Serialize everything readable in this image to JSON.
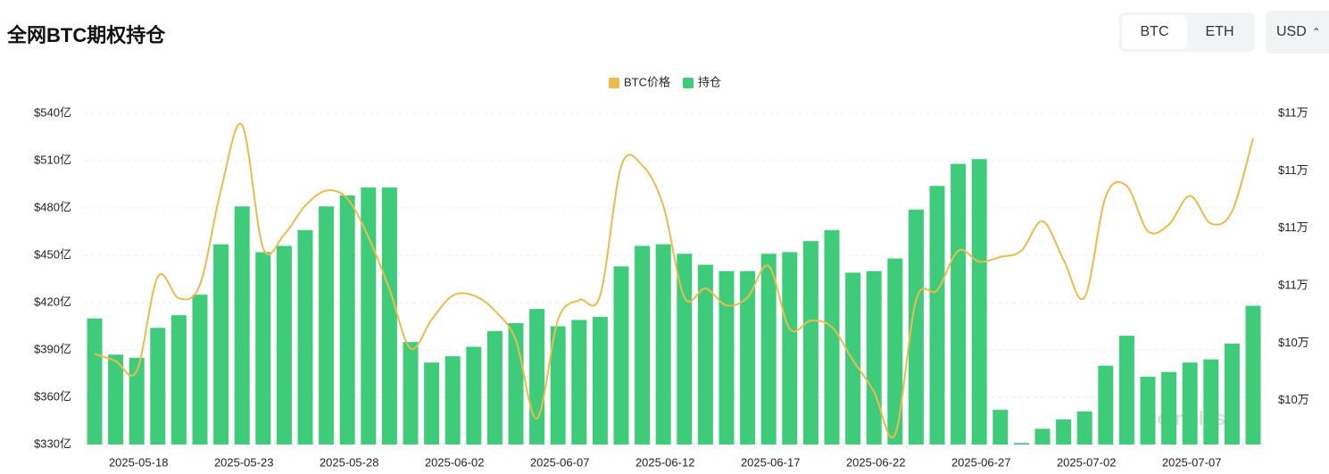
{
  "header": {
    "title": "全网BTC期权持仓",
    "tabs": [
      "BTC",
      "ETH"
    ],
    "currency": "USD"
  },
  "watermark": "coinglass",
  "chart_data": {
    "type": "bar-line",
    "categories": [
      null,
      null,
      "2025-05-18",
      null,
      null,
      null,
      null,
      "2025-05-23",
      null,
      null,
      null,
      null,
      "2025-05-28",
      null,
      null,
      null,
      null,
      "2025-06-02",
      null,
      null,
      null,
      null,
      "2025-06-07",
      null,
      null,
      null,
      null,
      "2025-06-12",
      null,
      null,
      null,
      null,
      "2025-06-17",
      null,
      null,
      null,
      null,
      "2025-06-22",
      null,
      null,
      null,
      null,
      "2025-06-27",
      null,
      null,
      null,
      null,
      "2025-07-02",
      null,
      null,
      null,
      null,
      "2025-07-07",
      null,
      null,
      null
    ],
    "series": [
      {
        "name": "BTC价格",
        "color": "#ecbb4e",
        "axis": "y2",
        "kind": "line",
        "values": [
          102030,
          101720,
          101290,
          105390,
          104450,
          105040,
          109180,
          111990,
          106640,
          107230,
          108480,
          109140,
          108790,
          107110,
          104840,
          102270,
          103520,
          104570,
          104570,
          103910,
          102620,
          99220,
          103520,
          104375,
          104570,
          110200,
          110240,
          108480,
          104490,
          104880,
          104140,
          104490,
          105860,
          103120,
          103480,
          103200,
          101760,
          100390,
          98520,
          104375,
          104800,
          106520,
          106050,
          106250,
          106520,
          107810,
          106130,
          104490,
          108870,
          109340,
          107380,
          107660,
          108910,
          107700,
          108240,
          111410
        ]
      },
      {
        "name": "持仓",
        "color": "#3ecc7a",
        "kind": "bar",
        "values": [
          410,
          387,
          385,
          404,
          412,
          425,
          457,
          481,
          452,
          456,
          466,
          481,
          488,
          493,
          493,
          395,
          382,
          386,
          392,
          402,
          407,
          416,
          405,
          409,
          411,
          443,
          456,
          457,
          451,
          444,
          440,
          440,
          451,
          452,
          459,
          466,
          439,
          440,
          448,
          479,
          494,
          508,
          511,
          352,
          331,
          340,
          346,
          351,
          380,
          399,
          373,
          376,
          382,
          384,
          394,
          418
        ]
      }
    ],
    "ylim": [
      330,
      540
    ],
    "yticks": [
      {
        "value": 330,
        "label": "$330亿"
      },
      {
        "value": 360,
        "label": "$360亿"
      },
      {
        "value": 390,
        "label": "$390亿"
      },
      {
        "value": 420,
        "label": "$420亿"
      },
      {
        "value": 450,
        "label": "$450亿"
      },
      {
        "value": 480,
        "label": "$480亿"
      },
      {
        "value": 510,
        "label": "$510亿"
      },
      {
        "value": 540,
        "label": "$540亿"
      }
    ],
    "y2lim": [
      98086,
      112500
    ],
    "y2ticks": [
      {
        "value": 100000,
        "label": "$10万"
      },
      {
        "value": 102500,
        "label": "$10万"
      },
      {
        "value": 105000,
        "label": "$11万"
      },
      {
        "value": 107500,
        "label": "$11万"
      },
      {
        "value": 110000,
        "label": "$11万"
      },
      {
        "value": 112500,
        "label": "$11万"
      }
    ],
    "grid": true,
    "legend": "top"
  }
}
